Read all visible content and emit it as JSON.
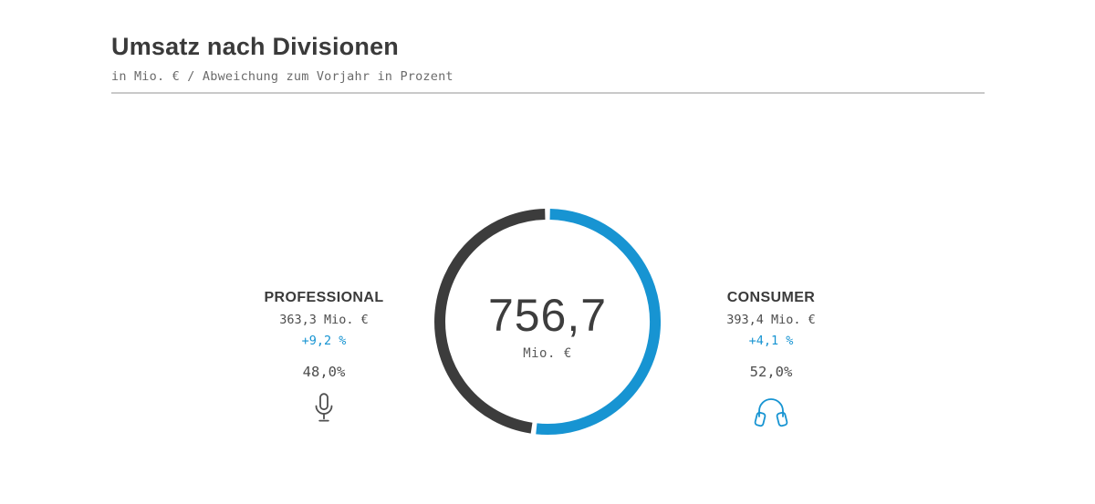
{
  "header": {
    "title": "Umsatz nach Divisionen",
    "subtitle": "in Mio. € / Abweichung zum Vorjahr in Prozent"
  },
  "colors": {
    "accent_blue": "#1794d2",
    "dark_gray": "#3c3c3c",
    "text_gray": "#6b6b6b",
    "divider_gray": "#c9c9c9"
  },
  "chart_data": {
    "type": "donut",
    "title": "Umsatz nach Divisionen",
    "unit": "Mio. €",
    "total": 756.7,
    "center_value": "756,7",
    "center_unit": "Mio. €",
    "start_angle_deg": 0,
    "direction": "clockwise",
    "gap_degrees": 2.6,
    "ring_radius": 118,
    "ring_width": 12,
    "segments": [
      {
        "name": "Consumer",
        "value": 393.4,
        "share_pct": 52.0,
        "delta_vs_prior_year_pct": 4.1,
        "color": "#1794d2"
      },
      {
        "name": "Professional",
        "value": 363.3,
        "share_pct": 48.0,
        "delta_vs_prior_year_pct": 9.2,
        "color": "#3c3c3c"
      }
    ]
  },
  "panels": {
    "professional": {
      "label": "PROFESSIONAL",
      "value": "363,3 Mio. €",
      "delta": "+9,2 %",
      "share": "48,0%",
      "icon": "microphone"
    },
    "consumer": {
      "label": "CONSUMER",
      "value": "393,4 Mio. €",
      "delta": "+4,1 %",
      "share": "52,0%",
      "icon": "headphones"
    }
  }
}
